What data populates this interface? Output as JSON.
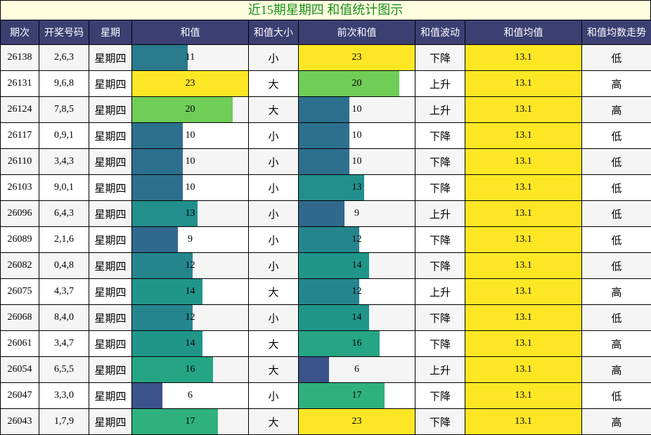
{
  "title": "近15期星期四 和值统计图示",
  "headers": [
    "期次",
    "开奖号码",
    "星期",
    "和值",
    "和值大小",
    "前次和值",
    "和值波动",
    "和值均值",
    "和值均数走势"
  ],
  "colors": {
    "header_bg": "#3b3f72",
    "title_bg": "#ffffe0",
    "title_text": "#1a8f1a",
    "avg_bg": "#fde724"
  },
  "chart_data": {
    "type": "table",
    "sum_max": 23,
    "rows": [
      {
        "issue": "26138",
        "numbers": "2,6,3",
        "weekday": "星期四",
        "sum": 11,
        "size": "小",
        "prev_sum": 23,
        "trend": "下降",
        "avg": "13.1",
        "avg_trend": "低"
      },
      {
        "issue": "26131",
        "numbers": "9,6,8",
        "weekday": "星期四",
        "sum": 23,
        "size": "大",
        "prev_sum": 20,
        "trend": "上升",
        "avg": "13.1",
        "avg_trend": "高"
      },
      {
        "issue": "26124",
        "numbers": "7,8,5",
        "weekday": "星期四",
        "sum": 20,
        "size": "大",
        "prev_sum": 10,
        "trend": "上升",
        "avg": "13.1",
        "avg_trend": "高"
      },
      {
        "issue": "26117",
        "numbers": "0,9,1",
        "weekday": "星期四",
        "sum": 10,
        "size": "小",
        "prev_sum": 10,
        "trend": "下降",
        "avg": "13.1",
        "avg_trend": "低"
      },
      {
        "issue": "26110",
        "numbers": "3,4,3",
        "weekday": "星期四",
        "sum": 10,
        "size": "小",
        "prev_sum": 10,
        "trend": "下降",
        "avg": "13.1",
        "avg_trend": "低"
      },
      {
        "issue": "26103",
        "numbers": "9,0,1",
        "weekday": "星期四",
        "sum": 10,
        "size": "小",
        "prev_sum": 13,
        "trend": "下降",
        "avg": "13.1",
        "avg_trend": "低"
      },
      {
        "issue": "26096",
        "numbers": "6,4,3",
        "weekday": "星期四",
        "sum": 13,
        "size": "小",
        "prev_sum": 9,
        "trend": "上升",
        "avg": "13.1",
        "avg_trend": "低"
      },
      {
        "issue": "26089",
        "numbers": "2,1,6",
        "weekday": "星期四",
        "sum": 9,
        "size": "小",
        "prev_sum": 12,
        "trend": "下降",
        "avg": "13.1",
        "avg_trend": "低"
      },
      {
        "issue": "26082",
        "numbers": "0,4,8",
        "weekday": "星期四",
        "sum": 12,
        "size": "小",
        "prev_sum": 14,
        "trend": "下降",
        "avg": "13.1",
        "avg_trend": "低"
      },
      {
        "issue": "26075",
        "numbers": "4,3,7",
        "weekday": "星期四",
        "sum": 14,
        "size": "大",
        "prev_sum": 12,
        "trend": "上升",
        "avg": "13.1",
        "avg_trend": "高"
      },
      {
        "issue": "26068",
        "numbers": "8,4,0",
        "weekday": "星期四",
        "sum": 12,
        "size": "小",
        "prev_sum": 14,
        "trend": "下降",
        "avg": "13.1",
        "avg_trend": "低"
      },
      {
        "issue": "26061",
        "numbers": "3,4,7",
        "weekday": "星期四",
        "sum": 14,
        "size": "大",
        "prev_sum": 16,
        "trend": "下降",
        "avg": "13.1",
        "avg_trend": "高"
      },
      {
        "issue": "26054",
        "numbers": "6,5,5",
        "weekday": "星期四",
        "sum": 16,
        "size": "大",
        "prev_sum": 6,
        "trend": "上升",
        "avg": "13.1",
        "avg_trend": "高"
      },
      {
        "issue": "26047",
        "numbers": "3,3,0",
        "weekday": "星期四",
        "sum": 6,
        "size": "小",
        "prev_sum": 17,
        "trend": "下降",
        "avg": "13.1",
        "avg_trend": "低"
      },
      {
        "issue": "26043",
        "numbers": "1,7,9",
        "weekday": "星期四",
        "sum": 17,
        "size": "大",
        "prev_sum": 23,
        "trend": "下降",
        "avg": "13.1",
        "avg_trend": "高"
      }
    ]
  }
}
